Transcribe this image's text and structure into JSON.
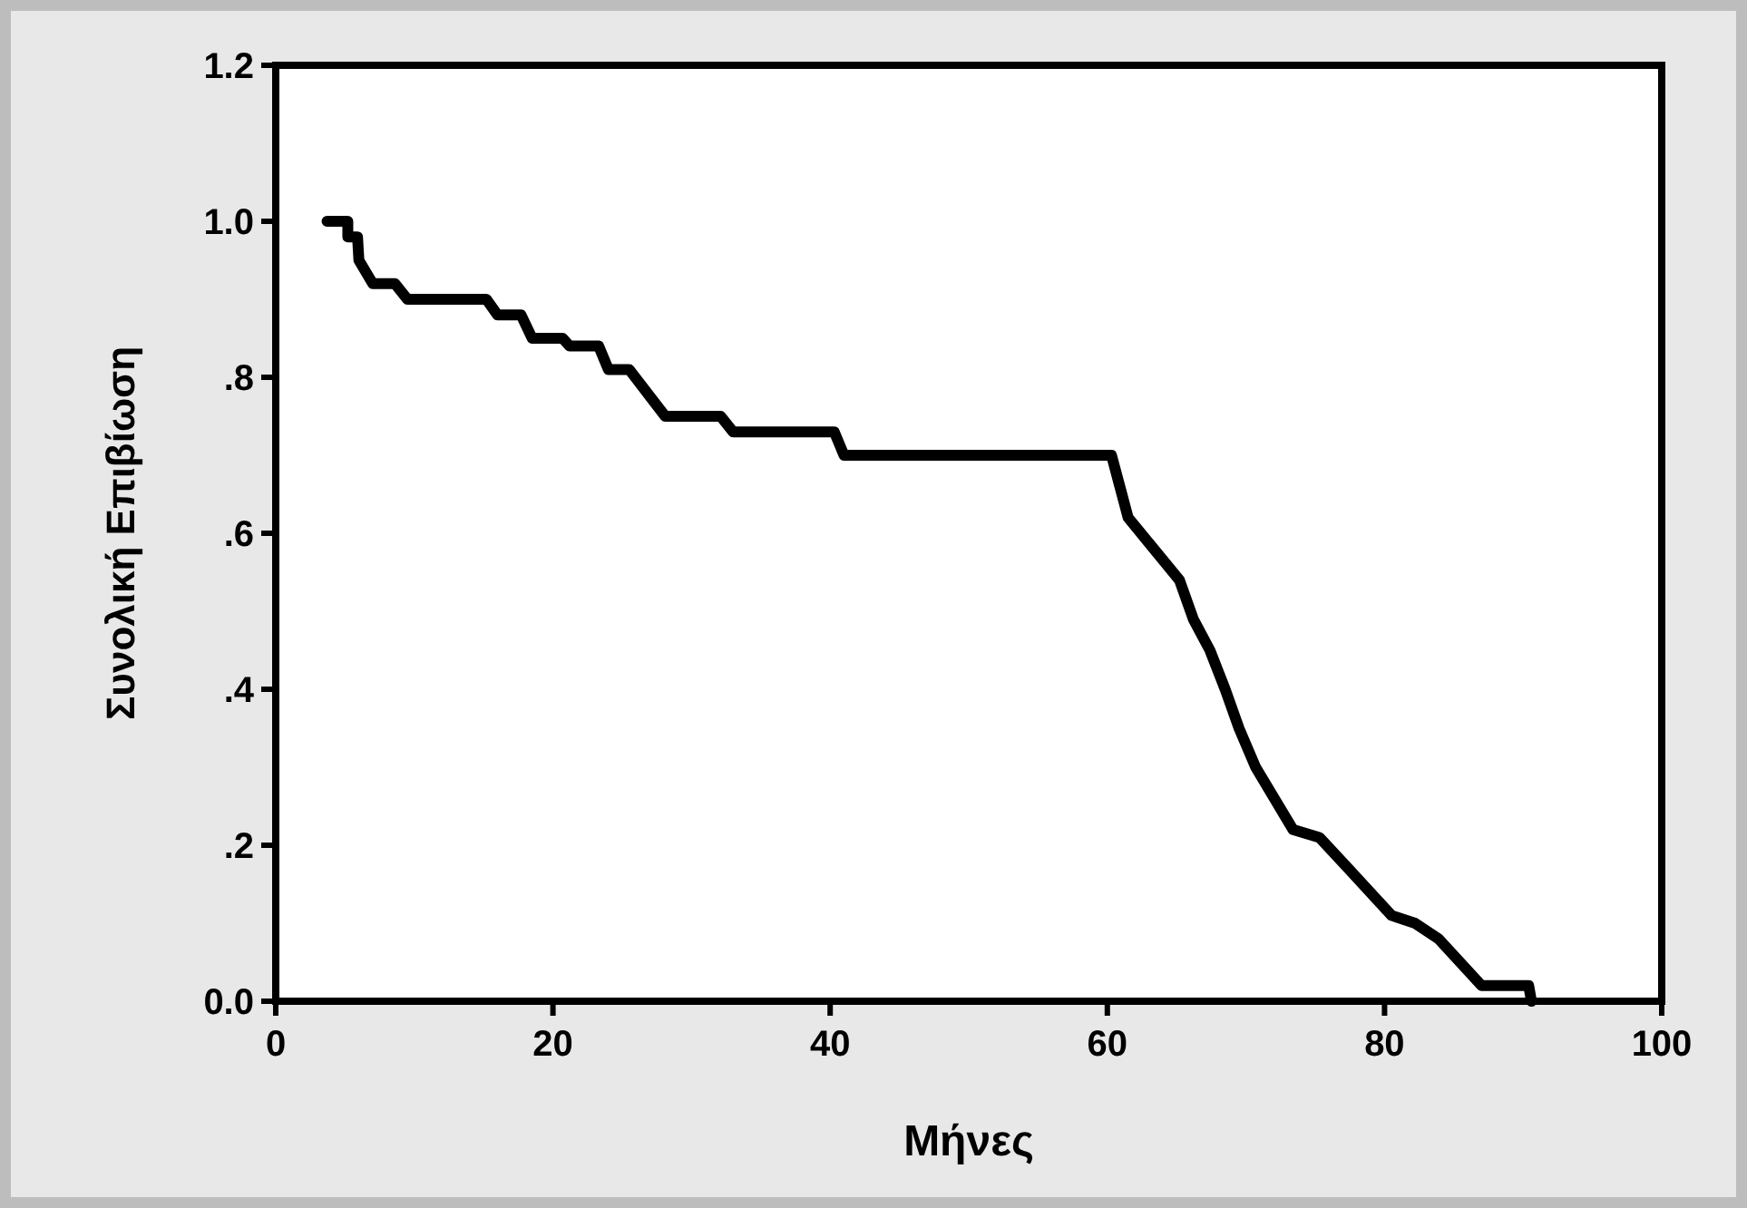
{
  "chart_data": {
    "type": "line",
    "xlabel": "Μήνες",
    "ylabel": "Συνολική Επιβίωση",
    "xlim": [
      0,
      100
    ],
    "xticks": [
      0,
      20,
      40,
      60,
      80,
      100
    ],
    "ylim": [
      0,
      1.2
    ],
    "yticks": [
      {
        "value": 0,
        "label": "0.0"
      },
      {
        "value": 0.2,
        "label": ".2"
      },
      {
        "value": 0.4,
        "label": ".4"
      },
      {
        "value": 0.6,
        "label": ".6"
      },
      {
        "value": 0.8,
        "label": ".8"
      },
      {
        "value": 1.0,
        "label": "1.0"
      },
      {
        "value": 1.2,
        "label": "1.2"
      }
    ],
    "grid": false,
    "marker": "none",
    "line_style": "solid",
    "series": [
      {
        "color": "#000000",
        "x": [
          3.7,
          5.2,
          5.2,
          5.9,
          6,
          7,
          8.6,
          9.5,
          15.2,
          16,
          17.7,
          18.5,
          20.7,
          21.2,
          23.3,
          24,
          25.5,
          28.1,
          32.1,
          33,
          40.3,
          41,
          60.3,
          60.9,
          61.5,
          65.2,
          66.2,
          67.4,
          68.5,
          69.5,
          70.7,
          73.4,
          75.3,
          77.4,
          80.5,
          82.2,
          83.9,
          87.0,
          90.4,
          90.6
        ],
        "values": [
          1.0,
          1.0,
          0.98,
          0.98,
          0.95,
          0.92,
          0.92,
          0.9,
          0.9,
          0.88,
          0.88,
          0.85,
          0.85,
          0.84,
          0.84,
          0.81,
          0.81,
          0.75,
          0.75,
          0.73,
          0.73,
          0.7,
          0.7,
          0.66,
          0.62,
          0.54,
          0.49,
          0.45,
          0.4,
          0.35,
          0.3,
          0.22,
          0.21,
          0.17,
          0.11,
          0.1,
          0.08,
          0.02,
          0.02,
          0
        ]
      }
    ]
  }
}
